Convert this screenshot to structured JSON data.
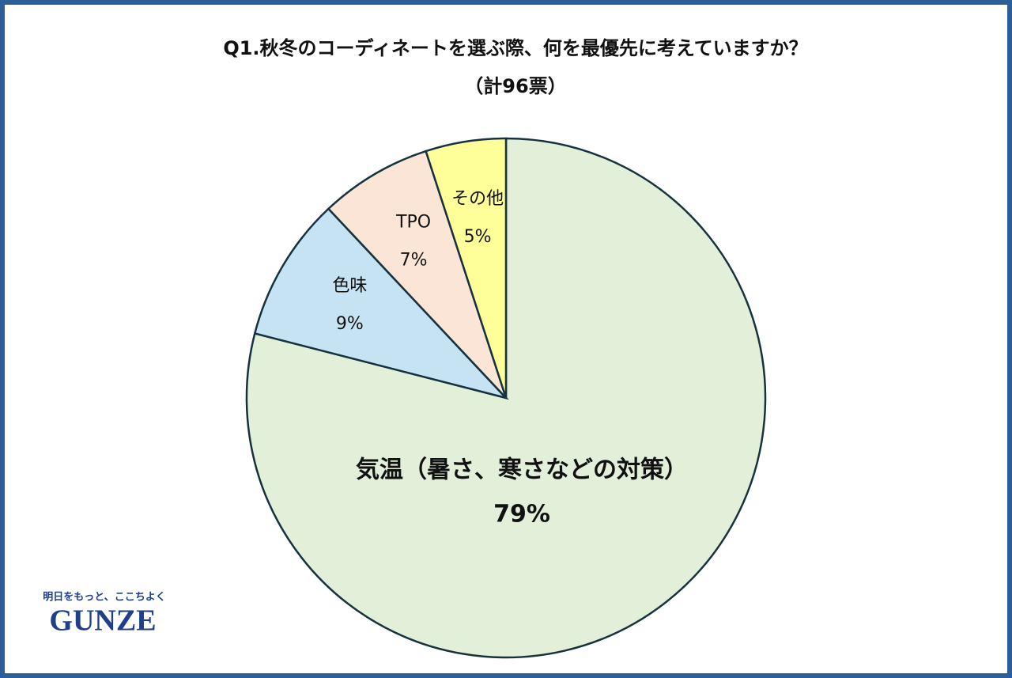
{
  "chart_data": {
    "type": "pie",
    "title": "Q1.秋冬のコーディネートを選ぶ際、何を最優先に考えていますか？",
    "subtitle": "（計96票）",
    "categories": [
      "気温（暑さ、寒さなどの対策）",
      "色味",
      "TPO",
      "その他"
    ],
    "values": [
      79,
      9,
      7,
      5
    ],
    "value_labels": [
      "79%",
      "9%",
      "7%",
      "5%"
    ],
    "colors": [
      "#e2f0d9",
      "#c6e3f4",
      "#fbe5d6",
      "#ffff99"
    ]
  },
  "logo": {
    "tagline": "明日をもっと、ここちよく",
    "brand": "GUNZE"
  }
}
